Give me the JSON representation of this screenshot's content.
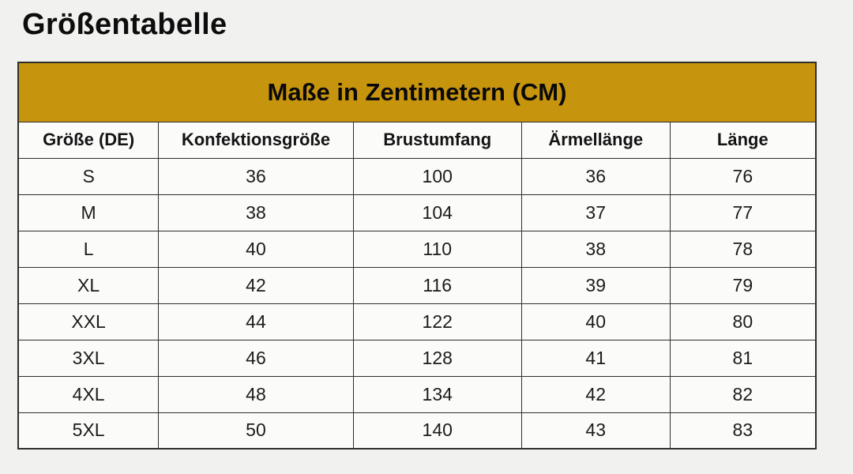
{
  "page": {
    "title": "Größentabelle"
  },
  "table": {
    "banner": "Maße in Zentimetern (CM)",
    "columns": [
      "Größe (DE)",
      "Konfektionsgröße",
      "Brustumfang",
      "Ärmellänge",
      "Länge"
    ],
    "rows": [
      [
        "S",
        "36",
        "100",
        "36",
        "76"
      ],
      [
        "M",
        "38",
        "104",
        "37",
        "77"
      ],
      [
        "L",
        "40",
        "110",
        "38",
        "78"
      ],
      [
        "XL",
        "42",
        "116",
        "39",
        "79"
      ],
      [
        "XXL",
        "44",
        "122",
        "40",
        "80"
      ],
      [
        "3XL",
        "46",
        "128",
        "41",
        "81"
      ],
      [
        "4XL",
        "48",
        "134",
        "42",
        "82"
      ],
      [
        "5XL",
        "50",
        "140",
        "43",
        "83"
      ]
    ]
  },
  "chart_data": {
    "type": "table",
    "title": "Maße in Zentimetern (CM)",
    "columns": [
      "Größe (DE)",
      "Konfektionsgröße",
      "Brustumfang",
      "Ärmellänge",
      "Länge"
    ],
    "rows": [
      [
        "S",
        36,
        100,
        36,
        76
      ],
      [
        "M",
        38,
        104,
        37,
        77
      ],
      [
        "L",
        40,
        110,
        38,
        78
      ],
      [
        "XL",
        42,
        116,
        39,
        79
      ],
      [
        "XXL",
        44,
        122,
        40,
        80
      ],
      [
        "3XL",
        46,
        128,
        41,
        81
      ],
      [
        "4XL",
        48,
        134,
        42,
        82
      ],
      [
        "5XL",
        50,
        140,
        43,
        83
      ]
    ]
  },
  "colors": {
    "banner_bg": "#C7940E",
    "border": "#2E2E2E",
    "page_bg": "#F1F1EF",
    "cell_bg": "#FBFBFA",
    "text": "#141414"
  }
}
